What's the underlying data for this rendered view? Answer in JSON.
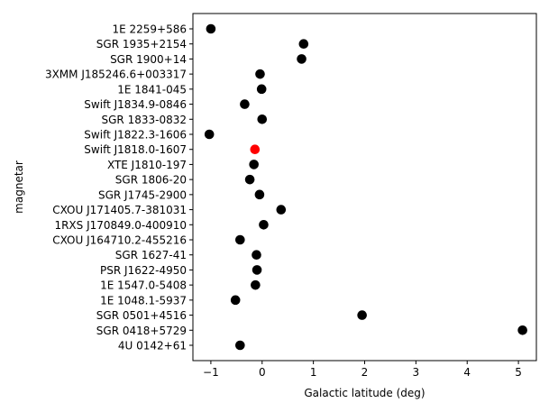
{
  "chart_data": {
    "type": "scatter",
    "xlabel": "Galactic latitude (deg)",
    "ylabel": "magnetar",
    "xlim": [
      -1.35,
      5.35
    ],
    "xticks": [
      -1,
      0,
      1,
      2,
      3,
      4,
      5
    ],
    "xtick_labels": [
      "−1",
      "0",
      "1",
      "2",
      "3",
      "4",
      "5"
    ],
    "grid": false,
    "default_color": "#000000",
    "highlight_color": "#ff0000",
    "points": [
      {
        "label": "1E 2259+586",
        "x": -1.0,
        "highlight": false
      },
      {
        "label": "SGR 1935+2154",
        "x": 0.81,
        "highlight": false
      },
      {
        "label": "SGR 1900+14",
        "x": 0.77,
        "highlight": false
      },
      {
        "label": "3XMM J185246.6+003317",
        "x": -0.04,
        "highlight": false
      },
      {
        "label": "1E 1841-045",
        "x": -0.01,
        "highlight": false
      },
      {
        "label": "Swift J1834.9-0846",
        "x": -0.34,
        "highlight": false
      },
      {
        "label": "SGR 1833-0832",
        "x": 0.0,
        "highlight": false
      },
      {
        "label": "Swift J1822.3-1606",
        "x": -1.03,
        "highlight": false
      },
      {
        "label": "Swift J1818.0-1607",
        "x": -0.14,
        "highlight": true
      },
      {
        "label": "XTE J1810-197",
        "x": -0.16,
        "highlight": false
      },
      {
        "label": "SGR 1806-20",
        "x": -0.24,
        "highlight": false
      },
      {
        "label": "SGR J1745-2900",
        "x": -0.05,
        "highlight": false
      },
      {
        "label": "CXOU J171405.7-381031",
        "x": 0.37,
        "highlight": false
      },
      {
        "label": "1RXS J170849.0-400910",
        "x": 0.03,
        "highlight": false
      },
      {
        "label": "CXOU J164710.2-455216",
        "x": -0.43,
        "highlight": false
      },
      {
        "label": "SGR 1627-41",
        "x": -0.11,
        "highlight": false
      },
      {
        "label": "PSR J1622-4950",
        "x": -0.1,
        "highlight": false
      },
      {
        "label": "1E 1547.0-5408",
        "x": -0.13,
        "highlight": false
      },
      {
        "label": "1E 1048.1-5937",
        "x": -0.52,
        "highlight": false
      },
      {
        "label": "SGR 0501+4516",
        "x": 1.95,
        "highlight": false
      },
      {
        "label": "SGR 0418+5729",
        "x": 5.08,
        "highlight": false
      },
      {
        "label": "4U 0142+61",
        "x": -0.43,
        "highlight": false
      }
    ]
  }
}
